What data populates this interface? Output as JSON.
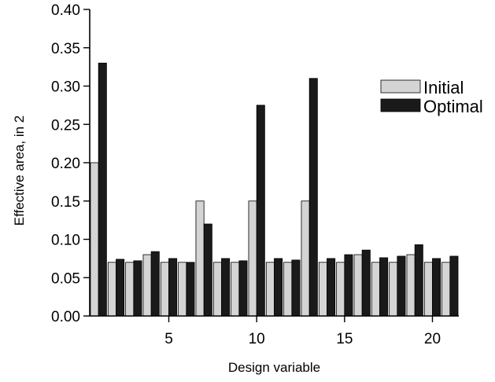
{
  "chart_data": {
    "type": "bar",
    "xlabel": "Design variable",
    "ylabel": "Effective area, in 2",
    "ylim": [
      0,
      0.4
    ],
    "y_ticks": [
      "0.00",
      "0.05",
      "0.10",
      "0.15",
      "0.20",
      "0.25",
      "0.30",
      "0.35",
      "0.40"
    ],
    "x_ticks": [
      "5",
      "10",
      "15",
      "20"
    ],
    "grid": false,
    "legend_position": "right",
    "categories": [
      1,
      2,
      3,
      4,
      5,
      6,
      7,
      8,
      9,
      10,
      11,
      12,
      13,
      14,
      15,
      16,
      17,
      18,
      19,
      20,
      21
    ],
    "series": [
      {
        "name": "Initial",
        "color": "#d4d4d4",
        "values": [
          0.2,
          0.07,
          0.07,
          0.08,
          0.07,
          0.07,
          0.15,
          0.07,
          0.07,
          0.15,
          0.07,
          0.07,
          0.15,
          0.07,
          0.07,
          0.08,
          0.07,
          0.07,
          0.08,
          0.07,
          0.07
        ]
      },
      {
        "name": "Optimal",
        "color": "#1a1a1a",
        "values": [
          0.33,
          0.074,
          0.072,
          0.084,
          0.075,
          0.07,
          0.12,
          0.075,
          0.072,
          0.275,
          0.075,
          0.073,
          0.31,
          0.075,
          0.08,
          0.086,
          0.076,
          0.078,
          0.093,
          0.075,
          0.078
        ]
      }
    ]
  }
}
